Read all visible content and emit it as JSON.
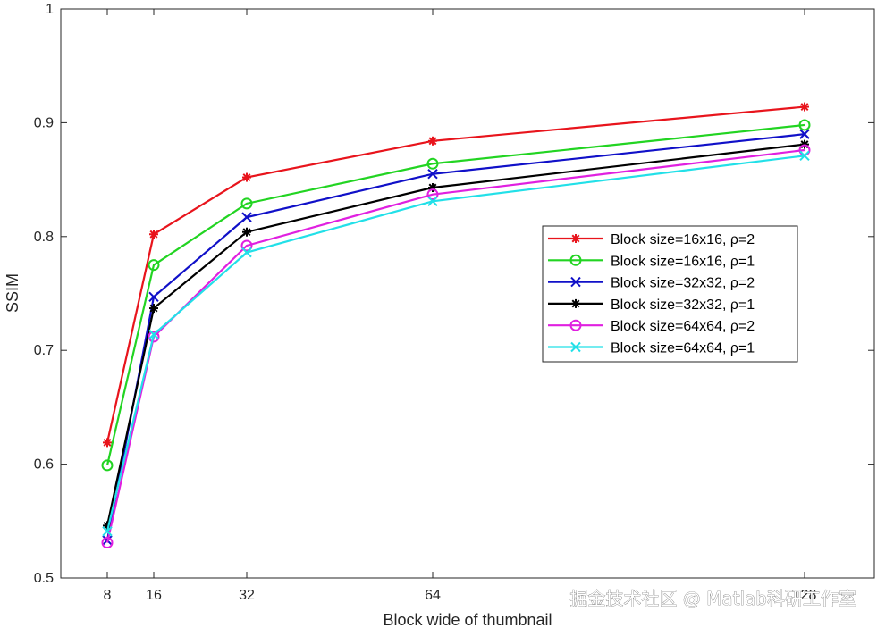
{
  "chart_data": {
    "type": "line",
    "title": "",
    "xlabel": "Block wide of thumbnail",
    "ylabel": "SSIM",
    "x": [
      8,
      16,
      32,
      64,
      128
    ],
    "x_tick_labels": [
      "8",
      "16",
      "32",
      "64",
      "128"
    ],
    "xlim": [
      0,
      140
    ],
    "ylim": [
      0.5,
      1.0
    ],
    "y_ticks": [
      0.5,
      0.6,
      0.7,
      0.8,
      0.9,
      1.0
    ],
    "y_tick_labels": [
      "0.5",
      "0.6",
      "0.7",
      "0.8",
      "0.9",
      "1"
    ],
    "grid": false,
    "legend_position": "center-right",
    "series": [
      {
        "name": "Block  size=16x16,  ρ=2",
        "color": "#e8141c",
        "marker": "asterisk",
        "values": [
          0.619,
          0.802,
          0.852,
          0.884,
          0.914
        ]
      },
      {
        "name": "Block  size=16x16,  ρ=1",
        "color": "#22d422",
        "marker": "circle",
        "values": [
          0.599,
          0.775,
          0.829,
          0.864,
          0.898
        ]
      },
      {
        "name": "Block  size=32x32,  ρ=2",
        "color": "#1010c8",
        "marker": "x",
        "values": [
          0.533,
          0.747,
          0.817,
          0.855,
          0.89
        ]
      },
      {
        "name": "Block  size=32x32,  ρ=1",
        "color": "#000000",
        "marker": "asterisk",
        "values": [
          0.546,
          0.737,
          0.804,
          0.843,
          0.881
        ]
      },
      {
        "name": "Block  size=64x64,  ρ=2",
        "color": "#e020e0",
        "marker": "circle",
        "values": [
          0.531,
          0.712,
          0.792,
          0.837,
          0.876
        ]
      },
      {
        "name": "Block  size=64x64,  ρ=1",
        "color": "#22e0e8",
        "marker": "x",
        "values": [
          0.541,
          0.714,
          0.786,
          0.831,
          0.871
        ]
      }
    ]
  },
  "watermark": {
    "text": "掘金技术社区 @ Matlab科研工作室"
  }
}
